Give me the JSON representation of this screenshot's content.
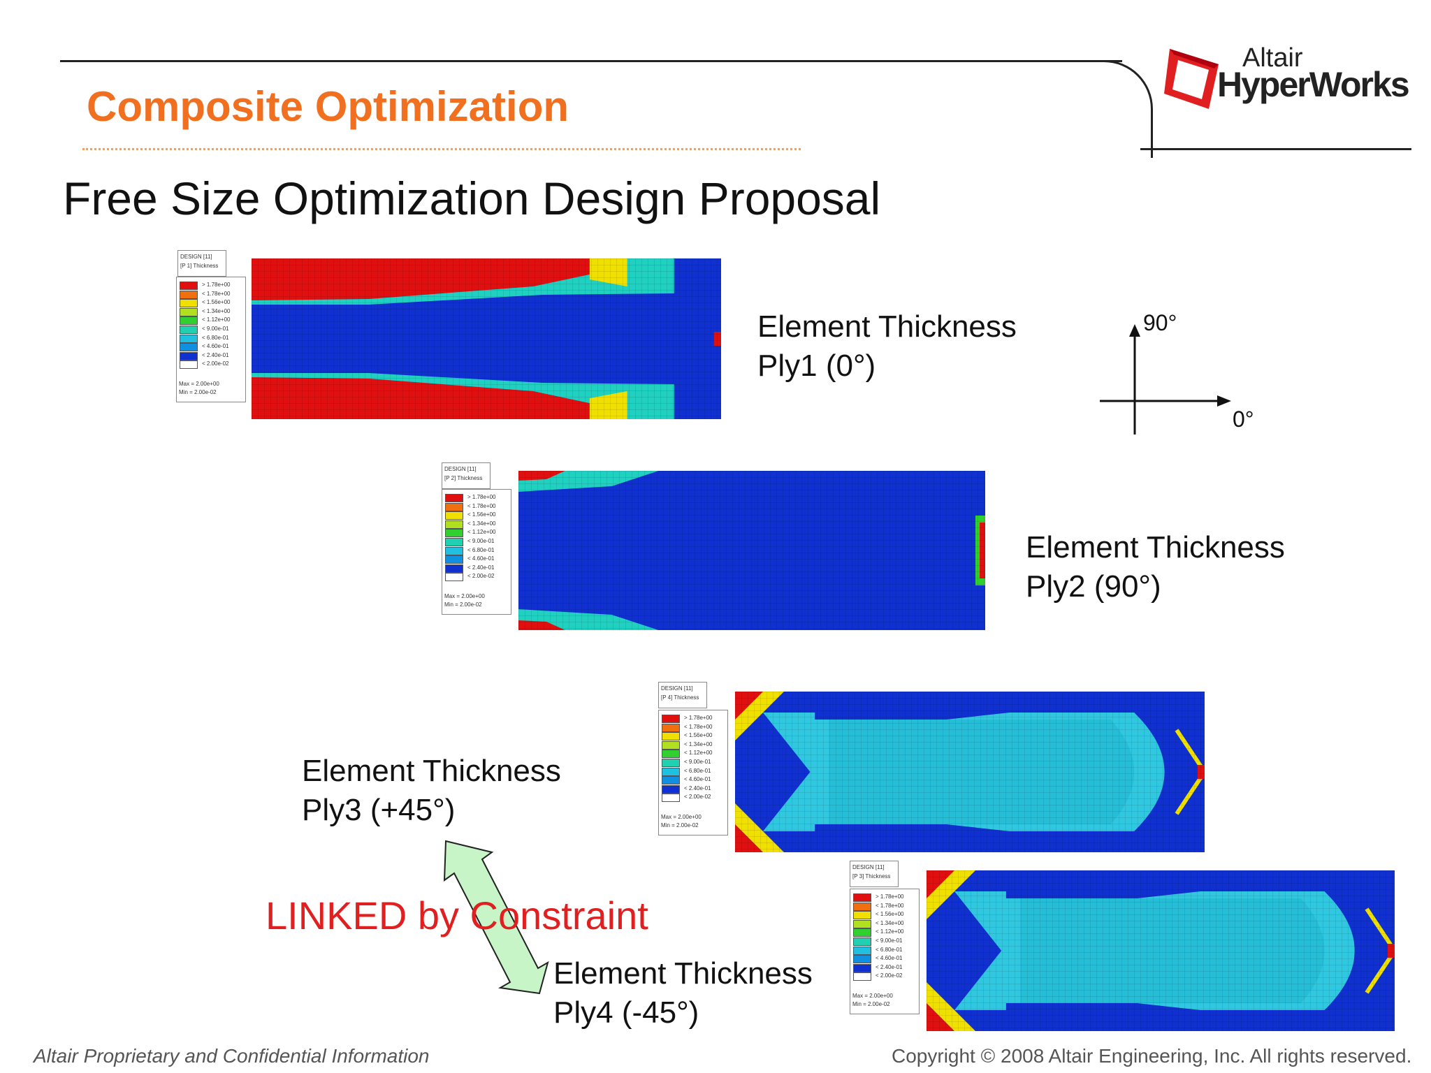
{
  "header": {
    "title": "Composite Optimization",
    "subtitle": "Free Size Optimization Design Proposal",
    "logo_small": "Altair",
    "logo_big": "HyperWorks",
    "accent_color": "#f07020"
  },
  "legend": {
    "design_label": "DESIGN [11]",
    "bins": [
      "> 1.78e+00",
      "< 1.78e+00",
      "< 1.56e+00",
      "< 1.34e+00",
      "< 1.12e+00",
      "< 9.00e-01",
      "< 6.80e-01",
      "< 4.60e-01",
      "< 2.40e-01",
      "< 2.00e-02"
    ],
    "colors": [
      "#e01010",
      "#f07010",
      "#f0e000",
      "#b0e020",
      "#30d030",
      "#20d0b0",
      "#20c0e0",
      "#1090e0",
      "#1030d0",
      "#ffffff"
    ],
    "max": "Max = 2.00e+00",
    "min": "Min = 2.00e-02"
  },
  "plies": [
    {
      "thickness_label": "[P 1] Thickness",
      "caption_1": "Element Thickness",
      "caption_2": "Ply1 (0°)"
    },
    {
      "thickness_label": "[P 2] Thickness",
      "caption_1": "Element Thickness",
      "caption_2": "Ply2 (90°)"
    },
    {
      "thickness_label": "[P 4] Thickness",
      "caption_1": "Element Thickness",
      "caption_2": "Ply3 (+45°)"
    },
    {
      "thickness_label": "[P 3] Thickness",
      "caption_1": "Element Thickness",
      "caption_2": "Ply4 (-45°)"
    }
  ],
  "compass": {
    "label_90": "90°",
    "label_0": "0°"
  },
  "linked_text": "LINKED by Constraint",
  "footer": {
    "left": "Altair Proprietary and Confidential Information",
    "right": "Copyright © 2008 Altair Engineering, Inc. All rights reserved."
  }
}
